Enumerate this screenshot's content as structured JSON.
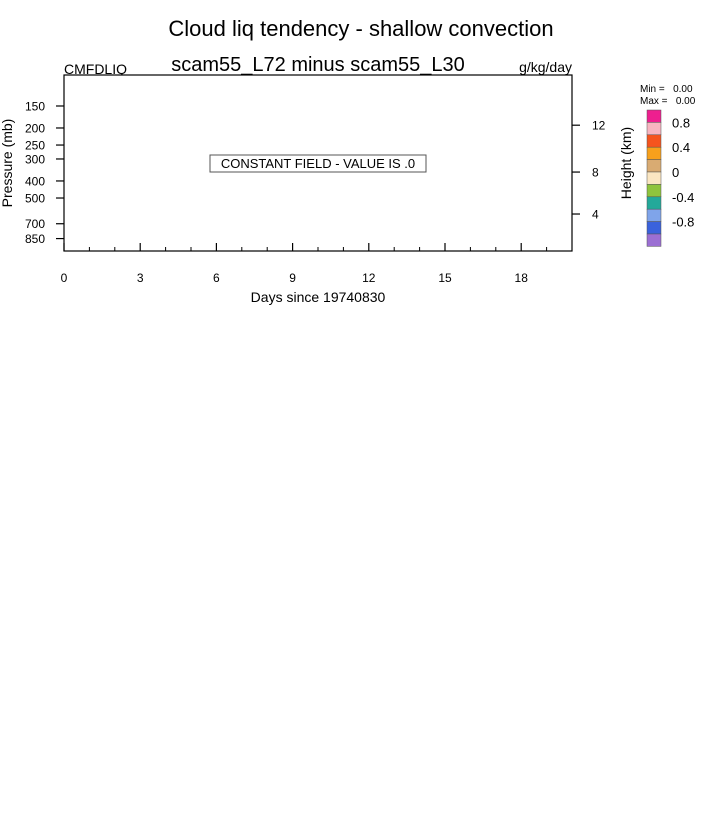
{
  "chart_data": {
    "type": "heatmap",
    "title": "Cloud liq tendency - shallow convection",
    "subtitle": "scam55_L72 minus scam55_L30",
    "left_label": "CMFDLIQ",
    "right_label": "g/kg/day",
    "xlabel": "Days since 19740830",
    "ylabel": "Pressure (mb)",
    "ylabel_right": "Height (km)",
    "x_ticks": [
      0,
      3,
      6,
      9,
      12,
      15,
      18
    ],
    "xlim": [
      0,
      20
    ],
    "y_ticks": [
      150,
      200,
      250,
      300,
      400,
      500,
      700,
      850
    ],
    "ylim": [
      1000,
      100
    ],
    "y_scale": "log",
    "height_ticks": [
      12,
      8,
      4
    ],
    "annotation": "CONSTANT FIELD - VALUE IS .0",
    "min_text": "Min =   0.00",
    "max_text": "Max =   0.00",
    "colorbar": {
      "colors": [
        "#ee1f8f",
        "#f8b4c0",
        "#f5541e",
        "#f7a01c",
        "#d9ab72",
        "#fbe6c2",
        "#8fc43d",
        "#23a99a",
        "#7fa4ea",
        "#3a62dc",
        "#9b6fd3"
      ],
      "labels": [
        "0.8",
        "0.4",
        "0",
        "-0.4",
        "-0.8"
      ]
    }
  }
}
